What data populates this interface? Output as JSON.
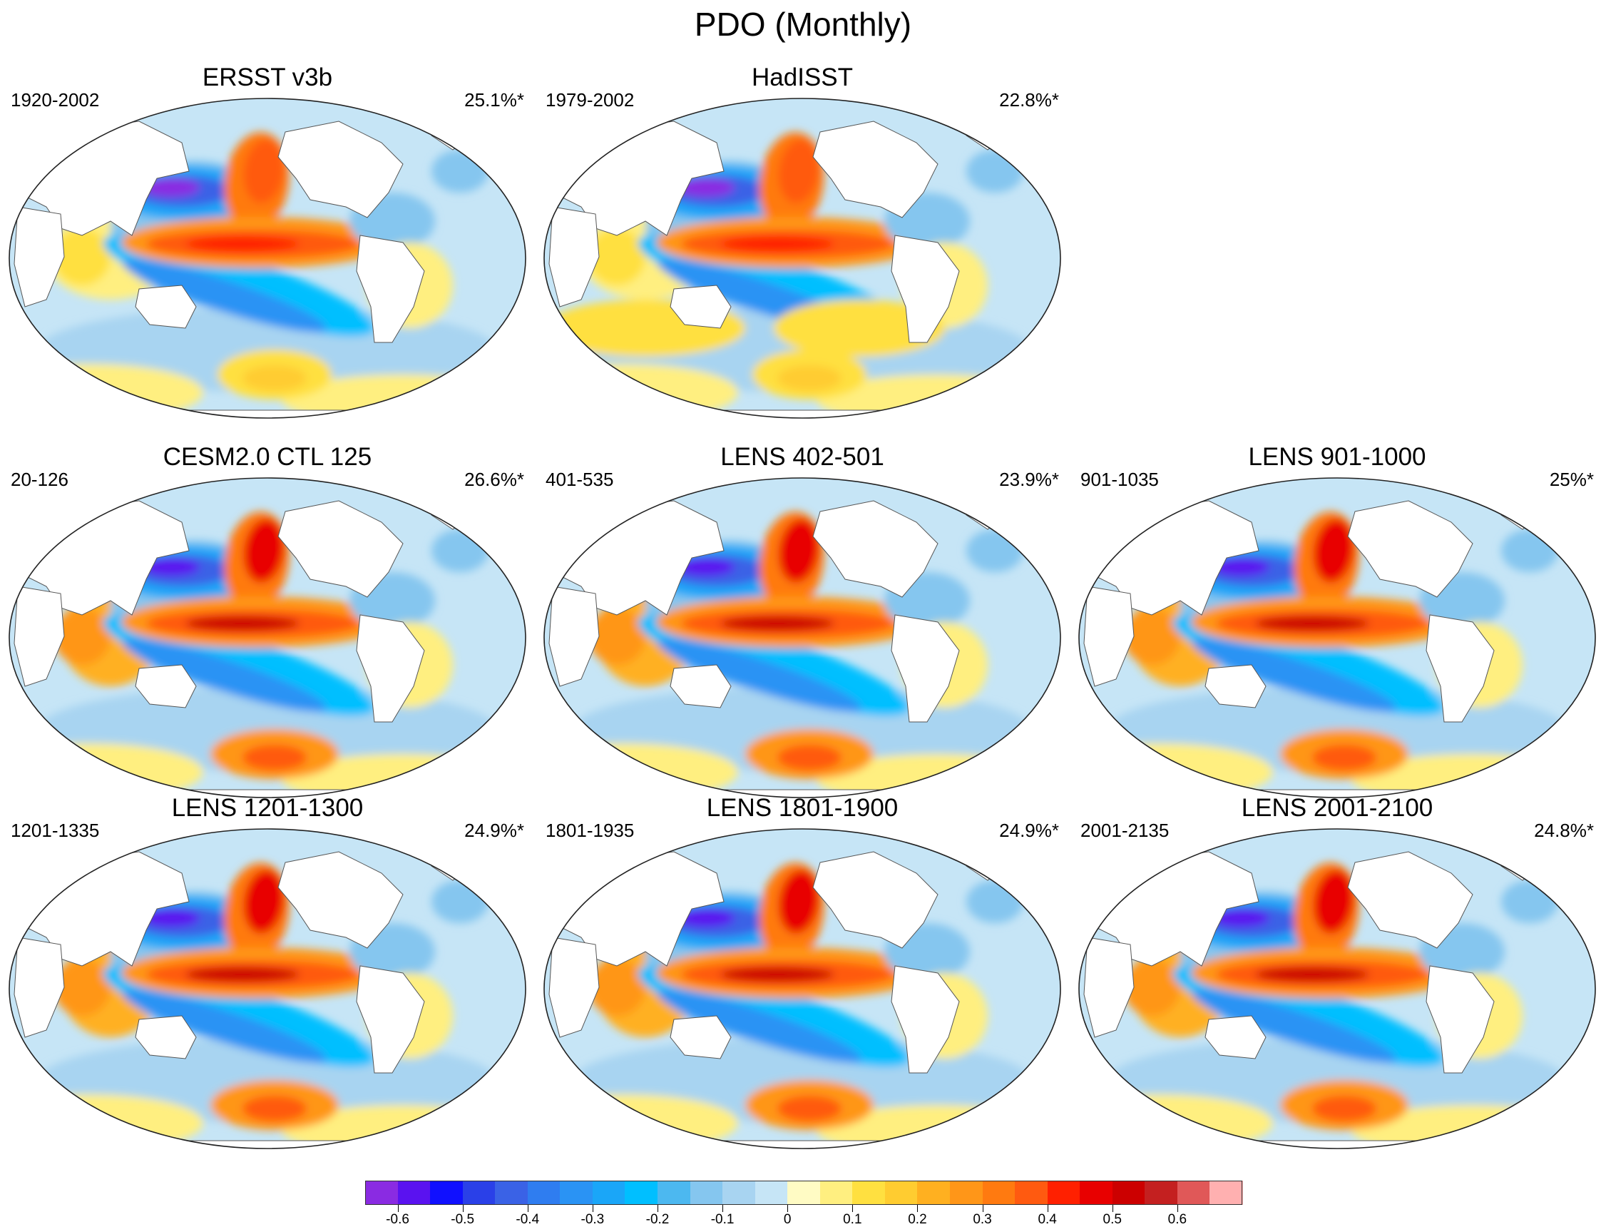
{
  "title": "PDO (Monthly)",
  "panels": [
    {
      "title": "ERSST v3b",
      "period": "1920-2002",
      "variance": "25.1%*",
      "col": 0,
      "row": 0,
      "style": "obs1"
    },
    {
      "title": "HadISST",
      "period": "1979-2002",
      "variance": "22.8%*",
      "col": 1,
      "row": 0,
      "style": "obs2"
    },
    {
      "title": "CESM2.0 CTL 125",
      "period": "20-126",
      "variance": "26.6%*",
      "col": 0,
      "row": 1,
      "style": "model"
    },
    {
      "title": "LENS 402-501",
      "period": "401-535",
      "variance": "23.9%*",
      "col": 1,
      "row": 1,
      "style": "model"
    },
    {
      "title": "LENS 901-1000",
      "period": "901-1035",
      "variance": "25%*",
      "col": 2,
      "row": 1,
      "style": "model"
    },
    {
      "title": "LENS 1201-1300",
      "period": "1201-1335",
      "variance": "24.9%*",
      "col": 0,
      "row": 2,
      "style": "model"
    },
    {
      "title": "LENS 1801-1900",
      "period": "1801-1935",
      "variance": "24.9%*",
      "col": 1,
      "row": 2,
      "style": "model"
    },
    {
      "title": "LENS 2001-2100",
      "period": "2001-2135",
      "variance": "24.8%*",
      "col": 2,
      "row": 2,
      "style": "model"
    }
  ],
  "colorbar": {
    "colors": [
      "#8a2be2",
      "#5a12f0",
      "#1010ff",
      "#2a40e8",
      "#3a62e6",
      "#2f7df0",
      "#2a93f4",
      "#1aa6f8",
      "#00bfff",
      "#4cb8f0",
      "#85c6ef",
      "#a8d4f1",
      "#c6e5f6",
      "#fffbc4",
      "#ffef80",
      "#ffe040",
      "#ffcc30",
      "#ffb020",
      "#ff9618",
      "#ff7a10",
      "#ff5a10",
      "#ff2000",
      "#e80000",
      "#cc0000",
      "#c42020",
      "#e05858",
      "#ffb0b0"
    ],
    "tick_labels": [
      "-0.6",
      "-0.5",
      "-0.4",
      "-0.3",
      "-0.2",
      "-0.1",
      "0",
      "0.1",
      "0.2",
      "0.3",
      "0.4",
      "0.5",
      "0.6"
    ]
  }
}
